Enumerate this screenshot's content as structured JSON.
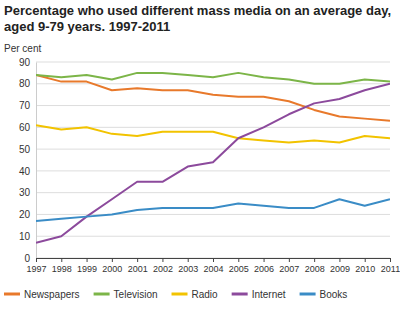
{
  "chart_data": {
    "type": "line",
    "title": "Percentage who used different mass media on an average day, aged 9-79 years. 1997-2011",
    "y_label": "Per cent",
    "x": [
      1997,
      1998,
      1999,
      2000,
      2001,
      2002,
      2003,
      2004,
      2005,
      2006,
      2007,
      2008,
      2009,
      2010,
      2011
    ],
    "xlim": [
      1997,
      2011
    ],
    "xticks": [
      1997,
      1998,
      1999,
      2000,
      2001,
      2002,
      2003,
      2004,
      2005,
      2006,
      2007,
      2008,
      2009,
      2010,
      2011
    ],
    "ylim": [
      0,
      90
    ],
    "yticks": [
      0,
      10,
      20,
      30,
      40,
      50,
      60,
      70,
      80,
      90
    ],
    "grid": true,
    "legend": "bottom",
    "series": [
      {
        "name": "Newspapers",
        "color": "#e8792b",
        "values": [
          84,
          81,
          81,
          77,
          78,
          77,
          77,
          75,
          74,
          74,
          72,
          68,
          65,
          64,
          63
        ]
      },
      {
        "name": "Television",
        "color": "#7cb548",
        "values": [
          84,
          83,
          84,
          82,
          85,
          85,
          84,
          83,
          85,
          83,
          82,
          80,
          80,
          82,
          81
        ]
      },
      {
        "name": "Radio",
        "color": "#f2c300",
        "values": [
          61,
          59,
          60,
          57,
          56,
          58,
          58,
          58,
          55,
          54,
          53,
          54,
          53,
          56,
          55
        ]
      },
      {
        "name": "Internet",
        "color": "#8c4a9c",
        "values": [
          7,
          10,
          19,
          27,
          35,
          35,
          42,
          44,
          55,
          60,
          66,
          71,
          73,
          77,
          80
        ]
      },
      {
        "name": "Books",
        "color": "#3a8cc6",
        "values": [
          17,
          18,
          19,
          20,
          22,
          23,
          23,
          23,
          25,
          24,
          23,
          23,
          27,
          24,
          27
        ]
      }
    ]
  }
}
